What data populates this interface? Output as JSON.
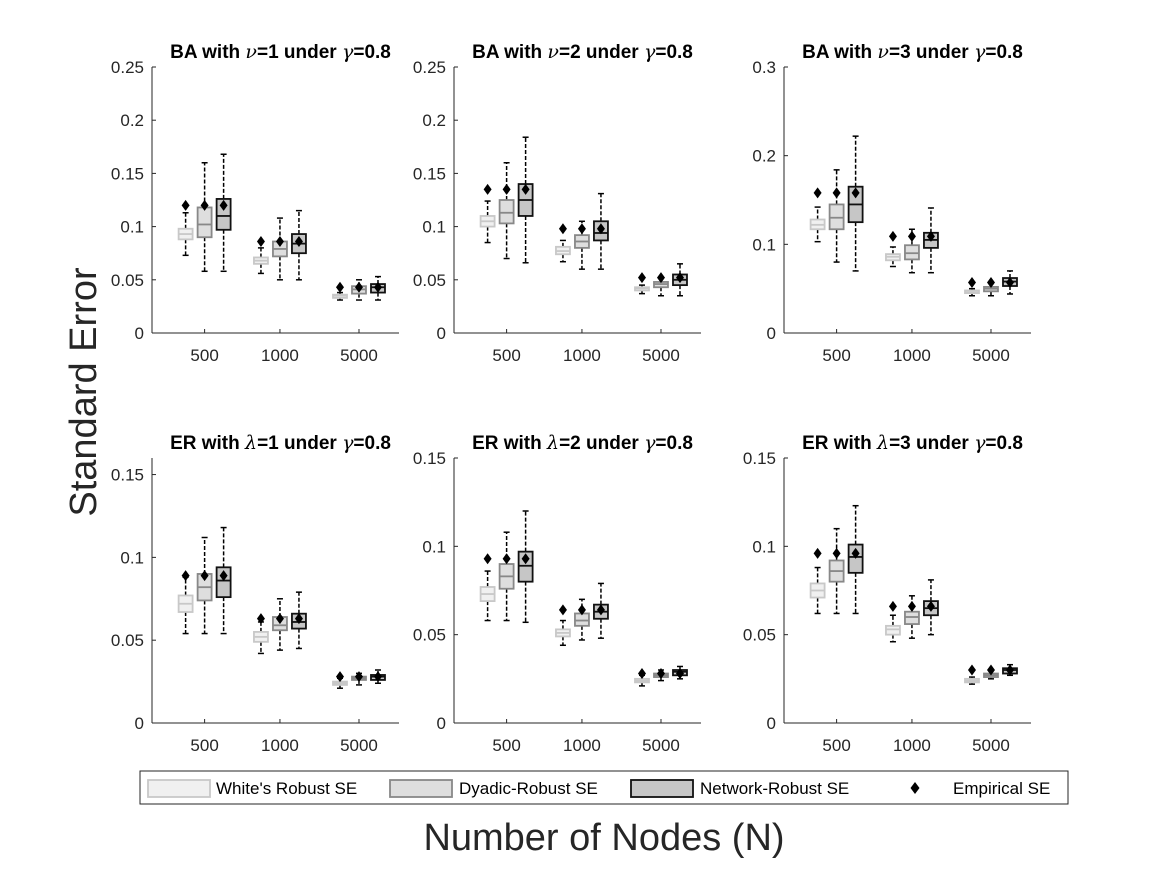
{
  "figure": {
    "ylabel": "Standard Error",
    "xlabel": "Number of Nodes (N)"
  },
  "legend": [
    {
      "label": "White's Robust SE",
      "kind": "box",
      "fill": "#f0f0f0",
      "stroke": "#c8c8c8"
    },
    {
      "label": "Dyadic-Robust SE",
      "kind": "box",
      "fill": "#dedede",
      "stroke": "#888888"
    },
    {
      "label": "Network-Robust SE",
      "kind": "box",
      "fill": "#c6c6c6",
      "stroke": "#111111"
    },
    {
      "label": "Empirical SE",
      "kind": "diamond",
      "fill": "#000000",
      "stroke": "#000000"
    }
  ],
  "chart_data": [
    {
      "type": "box",
      "title_parts": [
        "BA with ",
        "ν",
        "=1 under ",
        "γ",
        "=0.8"
      ],
      "categories": [
        "500",
        "1000",
        "5000"
      ],
      "ylim": [
        0,
        0.25
      ],
      "yticks": [
        "0",
        "0.05",
        "0.1",
        "0.15",
        "0.2",
        "0.25"
      ],
      "series": [
        {
          "name": "White's Robust SE",
          "boxes": [
            [
              0.073,
              0.088,
              0.093,
              0.098,
              0.113
            ],
            [
              0.056,
              0.065,
              0.068,
              0.071,
              0.08
            ],
            [
              0.031,
              0.033,
              0.035,
              0.036,
              0.038
            ]
          ]
        },
        {
          "name": "Dyadic-Robust SE",
          "boxes": [
            [
              0.058,
              0.09,
              0.102,
              0.118,
              0.16
            ],
            [
              0.05,
              0.072,
              0.079,
              0.086,
              0.108
            ],
            [
              0.031,
              0.037,
              0.041,
              0.044,
              0.05
            ]
          ]
        },
        {
          "name": "Network-Robust SE",
          "boxes": [
            [
              0.058,
              0.097,
              0.11,
              0.126,
              0.168
            ],
            [
              0.05,
              0.075,
              0.084,
              0.093,
              0.115
            ],
            [
              0.031,
              0.038,
              0.043,
              0.046,
              0.053
            ]
          ]
        }
      ],
      "empirical": [
        0.12,
        0.086,
        0.043
      ]
    },
    {
      "type": "box",
      "title_parts": [
        "BA with ",
        "ν",
        "=2 under ",
        "γ",
        "=0.8"
      ],
      "categories": [
        "500",
        "1000",
        "5000"
      ],
      "ylim": [
        0,
        0.25
      ],
      "yticks": [
        "0",
        "0.05",
        "0.1",
        "0.15",
        "0.2",
        "0.25"
      ],
      "series": [
        {
          "name": "White's Robust SE",
          "boxes": [
            [
              0.085,
              0.1,
              0.105,
              0.11,
              0.124
            ],
            [
              0.067,
              0.074,
              0.077,
              0.081,
              0.087
            ],
            [
              0.037,
              0.04,
              0.042,
              0.043,
              0.045
            ]
          ]
        },
        {
          "name": "Dyadic-Robust SE",
          "boxes": [
            [
              0.07,
              0.103,
              0.113,
              0.125,
              0.16
            ],
            [
              0.06,
              0.08,
              0.086,
              0.092,
              0.105
            ],
            [
              0.035,
              0.043,
              0.046,
              0.048,
              0.052
            ]
          ]
        },
        {
          "name": "Network-Robust SE",
          "boxes": [
            [
              0.066,
              0.11,
              0.125,
              0.14,
              0.184
            ],
            [
              0.06,
              0.087,
              0.094,
              0.105,
              0.131
            ],
            [
              0.035,
              0.045,
              0.05,
              0.055,
              0.065
            ]
          ]
        }
      ],
      "empirical": [
        0.135,
        0.098,
        0.052
      ]
    },
    {
      "type": "box",
      "title_parts": [
        "BA with ",
        "ν",
        "=3 under ",
        "γ",
        "=0.8"
      ],
      "categories": [
        "500",
        "1000",
        "5000"
      ],
      "ylim": [
        0,
        0.3
      ],
      "yticks": [
        "0",
        "0.1",
        "0.2",
        "0.3"
      ],
      "series": [
        {
          "name": "White's Robust SE",
          "boxes": [
            [
              0.103,
              0.117,
              0.122,
              0.128,
              0.142
            ],
            [
              0.075,
              0.082,
              0.086,
              0.089,
              0.097
            ],
            [
              0.042,
              0.045,
              0.046,
              0.048,
              0.05
            ]
          ]
        },
        {
          "name": "Dyadic-Robust SE",
          "boxes": [
            [
              0.08,
              0.117,
              0.13,
              0.145,
              0.184
            ],
            [
              0.068,
              0.083,
              0.09,
              0.099,
              0.117
            ],
            [
              0.042,
              0.047,
              0.05,
              0.052,
              0.056
            ]
          ]
        },
        {
          "name": "Network-Robust SE",
          "boxes": [
            [
              0.07,
              0.125,
              0.145,
              0.165,
              0.222
            ],
            [
              0.068,
              0.096,
              0.105,
              0.113,
              0.141
            ],
            [
              0.044,
              0.053,
              0.058,
              0.062,
              0.07
            ]
          ]
        }
      ],
      "empirical": [
        0.158,
        0.109,
        0.057
      ]
    },
    {
      "type": "box",
      "title_parts": [
        "ER with ",
        "λ",
        "=1 under ",
        "γ",
        "=0.8"
      ],
      "categories": [
        "500",
        "1000",
        "5000"
      ],
      "ylim": [
        0,
        0.16
      ],
      "yticks": [
        "0",
        "0.05",
        "0.1",
        "0.15"
      ],
      "series": [
        {
          "name": "White's Robust SE",
          "boxes": [
            [
              0.054,
              0.067,
              0.072,
              0.077,
              0.088
            ],
            [
              0.042,
              0.049,
              0.052,
              0.055,
              0.061
            ],
            [
              0.021,
              0.023,
              0.024,
              0.025,
              0.027
            ]
          ]
        },
        {
          "name": "Dyadic-Robust SE",
          "boxes": [
            [
              0.054,
              0.074,
              0.082,
              0.09,
              0.112
            ],
            [
              0.044,
              0.056,
              0.059,
              0.064,
              0.075
            ],
            [
              0.023,
              0.026,
              0.027,
              0.028,
              0.03
            ]
          ]
        },
        {
          "name": "Network-Robust SE",
          "boxes": [
            [
              0.054,
              0.076,
              0.086,
              0.094,
              0.118
            ],
            [
              0.045,
              0.057,
              0.061,
              0.066,
              0.079
            ],
            [
              0.024,
              0.026,
              0.028,
              0.029,
              0.032
            ]
          ]
        }
      ],
      "empirical": [
        0.089,
        0.063,
        0.028
      ]
    },
    {
      "type": "box",
      "title_parts": [
        "ER with ",
        "λ",
        "=2 under ",
        "γ",
        "=0.8"
      ],
      "categories": [
        "500",
        "1000",
        "5000"
      ],
      "ylim": [
        0,
        0.15
      ],
      "yticks": [
        "0",
        "0.05",
        "0.1",
        "0.15"
      ],
      "series": [
        {
          "name": "White's Robust SE",
          "boxes": [
            [
              0.058,
              0.069,
              0.073,
              0.077,
              0.086
            ],
            [
              0.044,
              0.049,
              0.051,
              0.053,
              0.058
            ],
            [
              0.021,
              0.023,
              0.024,
              0.025,
              0.027
            ]
          ]
        },
        {
          "name": "Dyadic-Robust SE",
          "boxes": [
            [
              0.058,
              0.076,
              0.083,
              0.09,
              0.108
            ],
            [
              0.047,
              0.055,
              0.058,
              0.062,
              0.07
            ],
            [
              0.024,
              0.026,
              0.027,
              0.028,
              0.03
            ]
          ]
        },
        {
          "name": "Network-Robust SE",
          "boxes": [
            [
              0.057,
              0.08,
              0.089,
              0.097,
              0.12
            ],
            [
              0.048,
              0.059,
              0.063,
              0.067,
              0.079
            ],
            [
              0.025,
              0.027,
              0.029,
              0.03,
              0.032
            ]
          ]
        }
      ],
      "empirical": [
        0.093,
        0.064,
        0.028
      ]
    },
    {
      "type": "box",
      "title_parts": [
        "ER with ",
        "λ",
        "=3 under ",
        "γ",
        "=0.8"
      ],
      "categories": [
        "500",
        "1000",
        "5000"
      ],
      "ylim": [
        0,
        0.15
      ],
      "yticks": [
        "0",
        "0.05",
        "0.1",
        "0.15"
      ],
      "series": [
        {
          "name": "White's Robust SE",
          "boxes": [
            [
              0.062,
              0.071,
              0.075,
              0.079,
              0.088
            ],
            [
              0.046,
              0.05,
              0.053,
              0.055,
              0.061
            ],
            [
              0.022,
              0.023,
              0.024,
              0.025,
              0.026
            ]
          ]
        },
        {
          "name": "Dyadic-Robust SE",
          "boxes": [
            [
              0.062,
              0.08,
              0.086,
              0.092,
              0.11
            ],
            [
              0.048,
              0.056,
              0.06,
              0.063,
              0.072
            ],
            [
              0.025,
              0.026,
              0.027,
              0.028,
              0.03
            ]
          ]
        },
        {
          "name": "Network-Robust SE",
          "boxes": [
            [
              0.062,
              0.085,
              0.094,
              0.101,
              0.123
            ],
            [
              0.05,
              0.061,
              0.065,
              0.069,
              0.081
            ],
            [
              0.027,
              0.028,
              0.03,
              0.031,
              0.033
            ]
          ]
        }
      ],
      "empirical": [
        0.096,
        0.066,
        0.03
      ]
    }
  ]
}
